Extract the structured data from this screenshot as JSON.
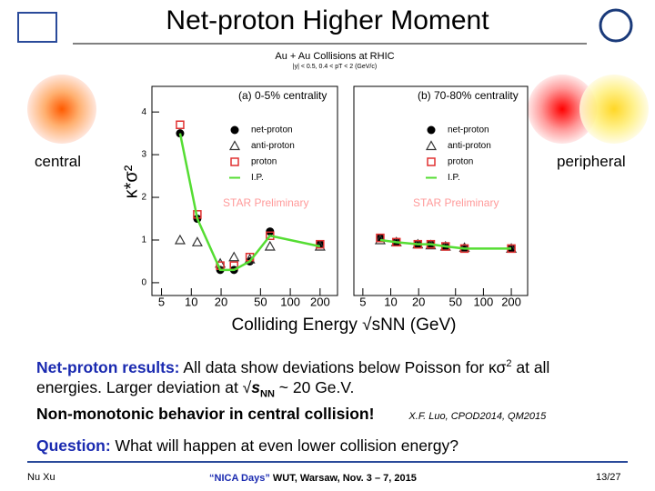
{
  "slide": {
    "title": "Net-proton Higher Moment",
    "left_label": "central",
    "right_label": "peripheral",
    "body": {
      "p1_bold": "Net-proton results:",
      "p1_a": "All data show deviations below Poisson for κσ",
      "p1_sup": "2",
      "p1_b": "at all",
      "p2_a": "energies. Larger deviation at √",
      "p2_s": "s",
      "p2_sub": "NN",
      "p2_b": "~ 20 Ge.V.",
      "p3_bold": "Non-monotonic behavior in central collision!",
      "ref": "X.F. Luo, CPOD2014, QM2015",
      "q_bold": "Question:",
      "q_text": "What will happen at even lower collision energy?"
    },
    "footer": {
      "author": "Nu Xu",
      "event_quoted": "“NICA Days”",
      "event": "WUT, Warsaw, Nov. 3 – 7, 2015",
      "page": "13/27"
    }
  },
  "chart_data": [
    {
      "type": "scatter",
      "title": "Au + Au Collisions at RHIC",
      "subtitle": "|y| < 0.5, 0.4 < pT < 2 (GeV/c)",
      "panel_label": "(a) 0-5% centrality",
      "annotation": "STAR Preliminary",
      "xlabel": "Colliding Energy √sNN (GeV)",
      "ylabel": "κ*σ²",
      "xscale": "log",
      "xlim": [
        4,
        300
      ],
      "ylim": [
        -0.3,
        4.6
      ],
      "xticks": [
        5,
        10,
        20,
        50,
        100,
        200
      ],
      "yticks": [
        0,
        1,
        2,
        3,
        4
      ],
      "x": [
        7.7,
        11.5,
        19.6,
        27,
        39,
        62.4,
        200
      ],
      "series": [
        {
          "name": "net-proton",
          "marker": "circle",
          "color": "#000000",
          "values": [
            3.5,
            1.5,
            0.3,
            0.3,
            0.5,
            1.2,
            0.9
          ]
        },
        {
          "name": "anti-proton",
          "marker": "triangle",
          "color": "#333333",
          "values": [
            1.0,
            0.95,
            0.45,
            0.6,
            0.55,
            0.85,
            0.85
          ]
        },
        {
          "name": "proton",
          "marker": "square",
          "color": "#e03030",
          "values": [
            3.7,
            1.6,
            0.4,
            0.4,
            0.6,
            1.1,
            0.9
          ]
        },
        {
          "name": "I.P.",
          "marker": "line",
          "color": "#55dd33",
          "values": [
            3.5,
            1.5,
            0.3,
            0.3,
            0.5,
            1.1,
            0.85
          ]
        }
      ]
    },
    {
      "type": "scatter",
      "panel_label": "(b) 70-80% centrality",
      "annotation": "STAR Preliminary",
      "xscale": "log",
      "xlim": [
        4,
        300
      ],
      "ylim": [
        -0.3,
        4.6
      ],
      "xticks": [
        5,
        10,
        20,
        50,
        100,
        200
      ],
      "x": [
        7.7,
        11.5,
        19.6,
        27,
        39,
        62.4,
        200
      ],
      "series": [
        {
          "name": "net-proton",
          "marker": "circle",
          "color": "#000000",
          "values": [
            1.05,
            0.95,
            0.9,
            0.9,
            0.85,
            0.8,
            0.8
          ]
        },
        {
          "name": "anti-proton",
          "marker": "triangle",
          "color": "#333333",
          "values": [
            1.0,
            0.95,
            0.9,
            0.88,
            0.85,
            0.82,
            0.8
          ]
        },
        {
          "name": "proton",
          "marker": "square",
          "color": "#e03030",
          "values": [
            1.05,
            0.95,
            0.9,
            0.9,
            0.85,
            0.8,
            0.8
          ]
        },
        {
          "name": "I.P.",
          "marker": "line",
          "color": "#55dd33",
          "values": [
            1.0,
            0.95,
            0.9,
            0.9,
            0.85,
            0.8,
            0.8
          ]
        }
      ]
    }
  ]
}
